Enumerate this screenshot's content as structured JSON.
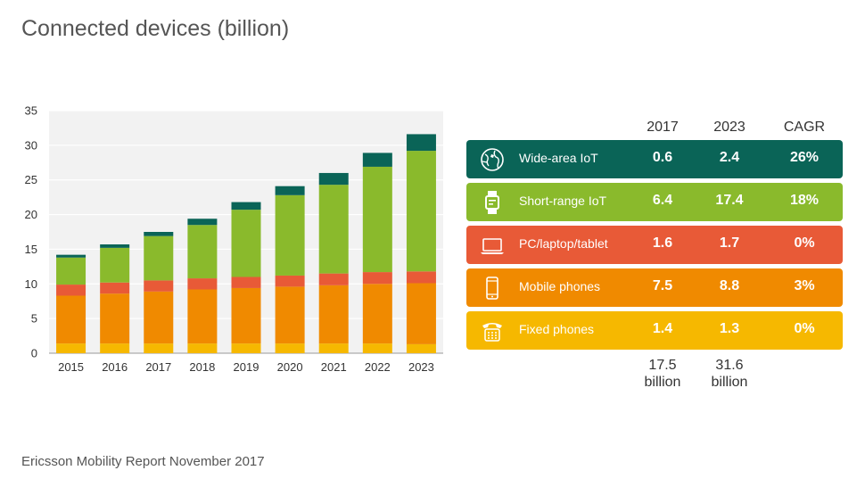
{
  "title": "Connected devices (billion)",
  "footer": "Ericsson Mobility Report November 2017",
  "colors": {
    "wide_area_iot": "#0a6457",
    "short_range_iot": "#8aba2c",
    "pc": "#e85a37",
    "mobile": "#f08a00",
    "fixed": "#f6b800"
  },
  "chart_data": {
    "type": "bar",
    "stacked": true,
    "title": "Connected devices (billion)",
    "categories": [
      "2015",
      "2016",
      "2017",
      "2018",
      "2019",
      "2020",
      "2021",
      "2022",
      "2023"
    ],
    "ylim": [
      0,
      35
    ],
    "yticks": [
      0,
      5,
      10,
      15,
      20,
      25,
      30,
      35
    ],
    "grid": true,
    "series": [
      {
        "name": "Fixed phones",
        "color": "#f6b800",
        "values": [
          1.4,
          1.4,
          1.4,
          1.4,
          1.4,
          1.4,
          1.4,
          1.4,
          1.3
        ]
      },
      {
        "name": "Mobile phones",
        "color": "#f08a00",
        "values": [
          6.9,
          7.2,
          7.5,
          7.8,
          8.0,
          8.2,
          8.4,
          8.6,
          8.8
        ]
      },
      {
        "name": "PC/laptop/tablet",
        "color": "#e85a37",
        "values": [
          1.6,
          1.6,
          1.6,
          1.6,
          1.6,
          1.6,
          1.7,
          1.7,
          1.7
        ]
      },
      {
        "name": "Short-range IoT",
        "color": "#8aba2c",
        "values": [
          3.9,
          5.0,
          6.4,
          7.7,
          9.7,
          11.6,
          12.8,
          15.2,
          17.4
        ]
      },
      {
        "name": "Wide-area IoT",
        "color": "#0a6457",
        "values": [
          0.4,
          0.5,
          0.6,
          0.9,
          1.1,
          1.3,
          1.7,
          2.0,
          2.4
        ]
      }
    ]
  },
  "table": {
    "headers": [
      "2017",
      "2023",
      "CAGR"
    ],
    "rows": [
      {
        "label": "Wide-area IoT",
        "v2017": "0.6",
        "v2023": "2.4",
        "cagr": "26%",
        "color": "#0a6457",
        "icon": "globe-icon"
      },
      {
        "label": "Short-range IoT",
        "v2017": "6.4",
        "v2023": "17.4",
        "cagr": "18%",
        "color": "#8aba2c",
        "icon": "smartwatch-icon"
      },
      {
        "label": "PC/laptop/tablet",
        "v2017": "1.6",
        "v2023": "1.7",
        "cagr": "0%",
        "color": "#e85a37",
        "icon": "laptop-icon"
      },
      {
        "label": "Mobile phones",
        "v2017": "7.5",
        "v2023": "8.8",
        "cagr": "3%",
        "color": "#f08a00",
        "icon": "mobile-phone-icon"
      },
      {
        "label": "Fixed phones",
        "v2017": "1.4",
        "v2023": "1.3",
        "cagr": "0%",
        "color": "#f6b800",
        "icon": "desk-phone-icon"
      }
    ],
    "totals": {
      "t2017_value": "17.5",
      "t2017_unit": "billion",
      "t2023_value": "31.6",
      "t2023_unit": "billion"
    }
  }
}
